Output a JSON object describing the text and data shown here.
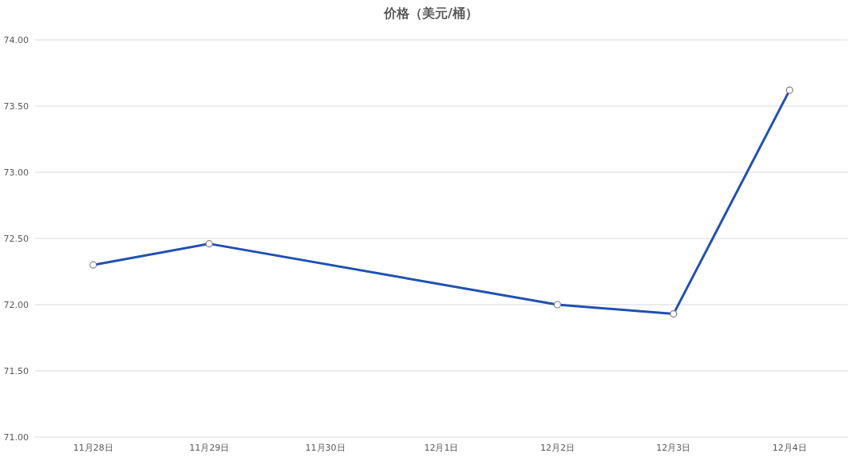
{
  "chart_data": {
    "type": "line",
    "title": "价格（美元/桶）",
    "categories": [
      "11月28日",
      "11月29日",
      "11月30日",
      "12月1日",
      "12月2日",
      "12月3日",
      "12月4日"
    ],
    "series": [
      {
        "color": "#2150b0",
        "values": [
          72.3,
          72.46,
          null,
          null,
          72.0,
          71.93,
          73.62
        ]
      }
    ],
    "ylim": [
      71,
      74
    ],
    "yticks": [
      {
        "value": 71,
        "label": "71.00"
      },
      {
        "value": 71.5,
        "label": "71.50"
      },
      {
        "value": 72,
        "label": "72.00"
      },
      {
        "value": 72.5,
        "label": "72.50"
      },
      {
        "value": 73,
        "label": "73.00"
      },
      {
        "value": 73.5,
        "label": "73.50"
      },
      {
        "value": 74,
        "label": "74.00"
      }
    ],
    "grid": "y",
    "marker": "circle",
    "line_style": "solid"
  }
}
